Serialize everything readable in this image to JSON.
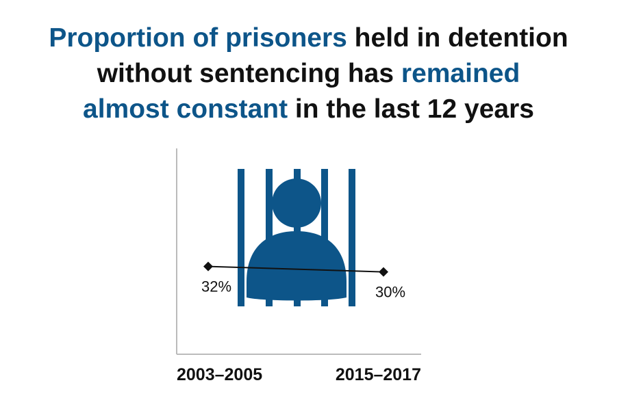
{
  "title": {
    "parts": [
      {
        "text": "Proportion of prisoners",
        "highlight": true
      },
      {
        "text": " held in detention",
        "highlight": false
      },
      {
        "text": "without sentencing has ",
        "highlight": false
      },
      {
        "text": "remained",
        "highlight": true
      },
      {
        "text": "almost constant",
        "highlight": true
      },
      {
        "text": " in the last 12 years",
        "highlight": false
      }
    ]
  },
  "colors": {
    "accent": "#0d5589",
    "text": "#111111",
    "axis": "#bbbbbb",
    "line": "#111111"
  },
  "icon": {
    "name": "prisoner-behind-bars-icon"
  },
  "chart_data": {
    "type": "line",
    "title": "Proportion of prisoners held in detention without sentencing has remained almost constant in the last 12 years",
    "categories": [
      "2003–2005",
      "2015–2017"
    ],
    "values": [
      32,
      30
    ],
    "data_labels": [
      "32%",
      "30%"
    ],
    "unit": "%",
    "xlabel": "",
    "ylabel": "",
    "ylim": [
      0,
      75
    ],
    "grid": false,
    "legend": "none"
  }
}
